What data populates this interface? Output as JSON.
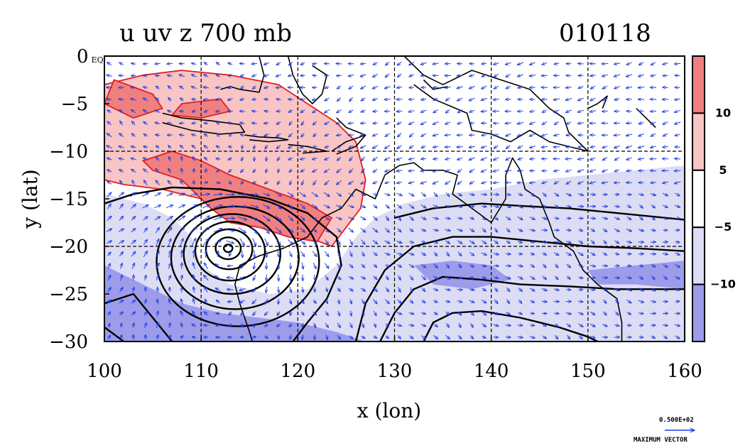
{
  "chart_data": {
    "type": "heatmap",
    "title_left": "u uv z 700 mb",
    "title_right": "010118",
    "xlabel": "x (lon)",
    "ylabel": "y (lat)",
    "xlim": [
      100,
      160
    ],
    "ylim": [
      -30,
      0
    ],
    "x_ticks": [
      "100",
      "110",
      "120",
      "130",
      "140",
      "150",
      "160"
    ],
    "y_ticks": [
      "0 EQ",
      "−5",
      "−10",
      "−15",
      "−20",
      "−25",
      "−30"
    ],
    "grid": true,
    "colorbar": {
      "ticks": [
        "10",
        "5",
        "−5",
        "−10"
      ],
      "colors": [
        "#f08080",
        "#f8c4c4",
        "#ffffff",
        "#dcdcf4",
        "#9c9cea"
      ]
    },
    "vector_legend": {
      "value": "0.500E+02",
      "label": "MAXIMUM VECTOR"
    },
    "cyclone_center": {
      "lon": 112.8,
      "lat": -20.2
    },
    "positive_regions": [
      {
        "level": "weak",
        "polygon": [
          [
            100,
            -3
          ],
          [
            104,
            -2
          ],
          [
            108,
            -1.5
          ],
          [
            113,
            -2
          ],
          [
            118,
            -3
          ],
          [
            121,
            -5
          ],
          [
            124,
            -7
          ],
          [
            126,
            -9
          ],
          [
            126.5,
            -11
          ],
          [
            127,
            -13
          ],
          [
            126.5,
            -16
          ],
          [
            125,
            -18
          ],
          [
            123.5,
            -20
          ],
          [
            121,
            -19
          ],
          [
            118,
            -17
          ],
          [
            114,
            -16
          ],
          [
            110,
            -15
          ],
          [
            106,
            -14
          ],
          [
            102,
            -13.5
          ],
          [
            100,
            -13
          ]
        ]
      },
      {
        "level": "strong",
        "polygon": [
          [
            104,
            -11
          ],
          [
            107,
            -10
          ],
          [
            110,
            -11
          ],
          [
            113,
            -12.5
          ],
          [
            117,
            -14
          ],
          [
            121,
            -15.5
          ],
          [
            123.5,
            -17
          ],
          [
            122,
            -19.5
          ],
          [
            119,
            -19
          ],
          [
            116,
            -18
          ],
          [
            113,
            -17.5
          ],
          [
            111,
            -16
          ],
          [
            108,
            -13
          ],
          [
            105,
            -12
          ]
        ]
      },
      {
        "level": "strong",
        "polygon": [
          [
            101,
            -2.5
          ],
          [
            105,
            -4
          ],
          [
            106,
            -5.5
          ],
          [
            103,
            -6.5
          ],
          [
            100,
            -5
          ]
        ]
      },
      {
        "level": "strong",
        "polygon": [
          [
            108,
            -5
          ],
          [
            112,
            -4.5
          ],
          [
            113,
            -5.8
          ],
          [
            110,
            -6.5
          ],
          [
            107,
            -6.2
          ]
        ]
      }
    ],
    "negative_regions": [
      {
        "level": "weak",
        "polygon": [
          [
            100,
            -14.5
          ],
          [
            104,
            -15.5
          ],
          [
            107,
            -17
          ],
          [
            109,
            -19
          ],
          [
            110,
            -22
          ],
          [
            113,
            -24
          ],
          [
            117,
            -25
          ],
          [
            121,
            -24.5
          ],
          [
            124,
            -22
          ],
          [
            126,
            -19
          ],
          [
            128,
            -17
          ],
          [
            131,
            -15.5
          ],
          [
            135,
            -14.5
          ],
          [
            140,
            -14
          ],
          [
            145,
            -13
          ],
          [
            150,
            -12.5
          ],
          [
            155,
            -12
          ],
          [
            160,
            -11.5
          ],
          [
            160,
            -30
          ],
          [
            100,
            -30
          ]
        ]
      },
      {
        "level": "strong",
        "polygon": [
          [
            100,
            -22
          ],
          [
            104,
            -24
          ],
          [
            108,
            -26
          ],
          [
            112,
            -27
          ],
          [
            116,
            -27.5
          ],
          [
            120,
            -28
          ],
          [
            124,
            -29
          ],
          [
            127,
            -30
          ],
          [
            100,
            -30
          ]
        ]
      },
      {
        "level": "strong",
        "polygon": [
          [
            132,
            -22
          ],
          [
            136,
            -21.5
          ],
          [
            140,
            -22
          ],
          [
            142,
            -23.5
          ],
          [
            138,
            -24.5
          ],
          [
            134,
            -24
          ]
        ]
      },
      {
        "level": "strong",
        "polygon": [
          [
            150,
            -22.5
          ],
          [
            155,
            -22
          ],
          [
            160,
            -21.5
          ],
          [
            160,
            -24.5
          ],
          [
            155,
            -24
          ],
          [
            151,
            -24
          ]
        ]
      }
    ],
    "coastlines": [
      [
        [
          106,
          -6
        ],
        [
          108,
          -6.5
        ],
        [
          111,
          -6.8
        ],
        [
          114,
          -7.2
        ],
        [
          114.5,
          -8
        ],
        [
          112,
          -8.2
        ],
        [
          109,
          -7.8
        ],
        [
          106,
          -7
        ]
      ],
      [
        [
          114.5,
          -8.3
        ],
        [
          116,
          -8.5
        ],
        [
          118,
          -8.6
        ],
        [
          119,
          -8.8
        ],
        [
          117,
          -9
        ],
        [
          115,
          -8.8
        ]
      ],
      [
        [
          119,
          -9.3
        ],
        [
          121,
          -9.5
        ],
        [
          123,
          -10
        ],
        [
          120.5,
          -10.2
        ]
      ],
      [
        [
          123.5,
          -10
        ],
        [
          125,
          -9
        ],
        [
          127,
          -8.3
        ],
        [
          126,
          -9.5
        ],
        [
          124,
          -10.3
        ]
      ],
      [
        [
          112,
          -3.5
        ],
        [
          113,
          -3.2
        ],
        [
          114,
          -3.5
        ],
        [
          116,
          -3.8
        ],
        [
          116.5,
          -2
        ],
        [
          116,
          0
        ]
      ],
      [
        [
          119,
          0
        ],
        [
          119.5,
          -2
        ],
        [
          120.5,
          -4
        ],
        [
          121.5,
          -5
        ],
        [
          122.5,
          -4
        ],
        [
          123,
          -2
        ],
        [
          121.5,
          -1
        ]
      ],
      [
        [
          131,
          0
        ],
        [
          133,
          -2
        ],
        [
          135,
          -3
        ],
        [
          138,
          -1.5
        ],
        [
          141,
          -2.5
        ],
        [
          144,
          -3.5
        ],
        [
          146,
          -5.5
        ],
        [
          147.5,
          -6.5
        ],
        [
          148,
          -8
        ],
        [
          150,
          -10
        ],
        [
          146,
          -9
        ],
        [
          144,
          -7.8
        ],
        [
          142,
          -9
        ],
        [
          140,
          -8.2
        ],
        [
          138,
          -7.8
        ],
        [
          137.5,
          -6
        ],
        [
          134,
          -4.5
        ],
        [
          132,
          -3
        ]
      ],
      [
        [
          129,
          -12.5
        ],
        [
          130.5,
          -11.5
        ],
        [
          132,
          -11.2
        ],
        [
          133,
          -12
        ],
        [
          135,
          -12
        ],
        [
          136.5,
          -12.5
        ],
        [
          136,
          -14.5
        ],
        [
          138,
          -16
        ],
        [
          140,
          -17.5
        ],
        [
          141.5,
          -15
        ],
        [
          141.5,
          -12.5
        ],
        [
          142.2,
          -10.7
        ],
        [
          143,
          -12
        ],
        [
          143.5,
          -14
        ],
        [
          145,
          -15
        ],
        [
          146,
          -17.5
        ],
        [
          146.5,
          -19
        ],
        [
          148.5,
          -20.5
        ],
        [
          149.5,
          -22.5
        ],
        [
          151,
          -24
        ],
        [
          153,
          -25.5
        ],
        [
          153.5,
          -28
        ],
        [
          153.5,
          -30
        ]
      ],
      [
        [
          129,
          -12.5
        ],
        [
          128,
          -15
        ],
        [
          126,
          -14
        ],
        [
          124.5,
          -16
        ],
        [
          122.5,
          -17
        ],
        [
          121,
          -19
        ],
        [
          118.5,
          -20.2
        ],
        [
          116,
          -21
        ],
        [
          114,
          -22
        ],
        [
          113.5,
          -24
        ],
        [
          114,
          -26
        ],
        [
          115,
          -29
        ],
        [
          115.3,
          -30
        ]
      ],
      [
        [
          150,
          -5.5
        ],
        [
          151,
          -5
        ],
        [
          152,
          -4.2
        ],
        [
          151.5,
          -5.5
        ]
      ],
      [
        [
          155,
          -5.5
        ],
        [
          156,
          -6.5
        ],
        [
          157,
          -7.5
        ]
      ],
      [
        [
          124,
          -6.5
        ],
        [
          125,
          -7.5
        ],
        [
          127,
          -8.3
        ]
      ],
      [
        [
          133,
          -2.5
        ],
        [
          134,
          -3.5
        ],
        [
          135.5,
          -3.2
        ]
      ]
    ],
    "contours": [
      {
        "type": "ring",
        "cx": 112.8,
        "cy": -20.2,
        "rx": 0.45,
        "ry": 0.4
      },
      {
        "type": "ring",
        "cx": 112.8,
        "cy": -20.2,
        "rx": 1.3,
        "ry": 1.15
      },
      {
        "type": "ring",
        "cx": 112.9,
        "cy": -20.3,
        "rx": 2.4,
        "ry": 2.1
      },
      {
        "type": "ring",
        "cx": 113.0,
        "cy": -20.5,
        "rx": 3.6,
        "ry": 3.1
      },
      {
        "type": "ring",
        "cx": 113.2,
        "cy": -20.8,
        "rx": 5.0,
        "ry": 4.2
      },
      {
        "type": "ring",
        "cx": 113.5,
        "cy": -21.2,
        "rx": 6.6,
        "ry": 5.4
      },
      {
        "type": "ring",
        "cx": 113.8,
        "cy": -21.6,
        "rx": 8.4,
        "ry": 6.8
      },
      {
        "type": "line",
        "points": [
          [
            100,
            -15.5
          ],
          [
            103,
            -14.5
          ],
          [
            107,
            -13.8
          ],
          [
            112,
            -14
          ],
          [
            117,
            -15
          ],
          [
            121,
            -16.5
          ],
          [
            124,
            -19
          ],
          [
            124.5,
            -22
          ],
          [
            123,
            -25.5
          ],
          [
            121,
            -28
          ],
          [
            119.5,
            -30
          ]
        ]
      },
      {
        "type": "line",
        "points": [
          [
            126,
            -30
          ],
          [
            127,
            -26
          ],
          [
            129,
            -22.5
          ],
          [
            132,
            -20
          ],
          [
            136,
            -19
          ],
          [
            140,
            -19
          ],
          [
            145,
            -19.5
          ],
          [
            150,
            -20
          ],
          [
            155,
            -20.2
          ],
          [
            160,
            -20.5
          ]
        ]
      },
      {
        "type": "line",
        "points": [
          [
            128.5,
            -30
          ],
          [
            130,
            -27
          ],
          [
            132,
            -24.5
          ],
          [
            135,
            -23.2
          ],
          [
            139,
            -23.5
          ],
          [
            143,
            -24
          ],
          [
            148,
            -24.2
          ],
          [
            153,
            -24.5
          ],
          [
            160,
            -24.5
          ]
        ]
      },
      {
        "type": "line",
        "points": [
          [
            130,
            -17
          ],
          [
            134,
            -16
          ],
          [
            139,
            -15.5
          ],
          [
            144,
            -15.8
          ],
          [
            148,
            -16
          ],
          [
            153,
            -16.5
          ],
          [
            158,
            -17
          ],
          [
            160,
            -17.2
          ]
        ]
      },
      {
        "type": "line",
        "points": [
          [
            133,
            -30
          ],
          [
            134,
            -28
          ],
          [
            136,
            -27
          ],
          [
            139,
            -26.8
          ],
          [
            143,
            -27.5
          ],
          [
            147,
            -28.5
          ],
          [
            150,
            -29.5
          ],
          [
            151,
            -30
          ]
        ]
      },
      {
        "type": "line",
        "points": [
          [
            100,
            -26
          ],
          [
            103,
            -25
          ],
          [
            105,
            -27.5
          ],
          [
            107,
            -30
          ]
        ]
      },
      {
        "type": "line",
        "points": [
          [
            100,
            -28.5
          ],
          [
            102,
            -30
          ]
        ]
      }
    ]
  }
}
